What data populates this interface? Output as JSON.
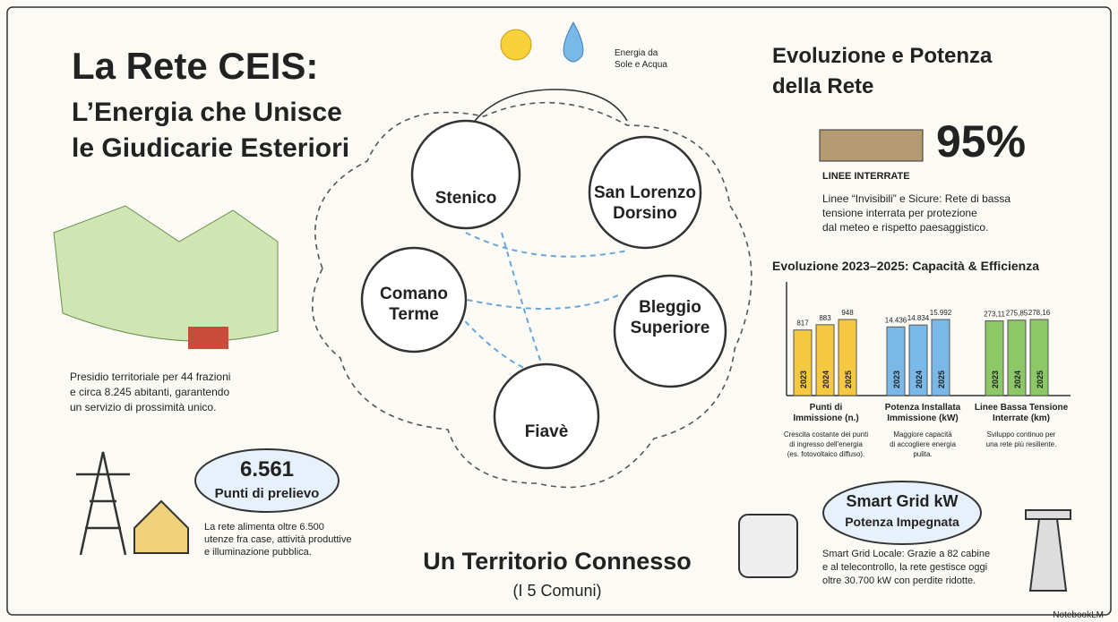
{
  "header": {
    "title": "La Rete CEIS:",
    "subtitle_lines": [
      "L’Energia che Unisce",
      "le Giudicarie Esteriori"
    ]
  },
  "energy_label": [
    "Energia da",
    "Sole e Acqua"
  ],
  "presidio_text": [
    "Presidio territoriale per 44 frazioni",
    "e circa 8.245 abitanti, garantendo",
    "un servizio di prossimità unico."
  ],
  "prelievo": {
    "value": "6.561",
    "label": "Punti di prelievo",
    "text": [
      "La rete alimenta oltre 6.500",
      "utenze fra case, attività produttive",
      "e illuminazione pubblica."
    ]
  },
  "nodes": [
    {
      "label": [
        "Stenico"
      ]
    },
    {
      "label": [
        "San Lorenzo",
        "Dorsino"
      ]
    },
    {
      "label": [
        "Comano",
        "Terme"
      ]
    },
    {
      "label": [
        "Bleggio",
        "Superiore"
      ]
    },
    {
      "label": [
        "Fiavè"
      ]
    }
  ],
  "center": {
    "title": "Un Territorio Connesso",
    "subtitle": "(I 5 Comuni)"
  },
  "evolution": {
    "title": [
      "Evoluzione e Potenza",
      "della Rete"
    ],
    "percent": "95%",
    "percent_label": "LINEE INTERRATE",
    "text": [
      "Linee “Invisibili” e Sicure: Rete di bassa",
      "tensione interrata per protezione",
      "dal meteo e rispetto paesaggistico."
    ]
  },
  "charts_title": "Evoluzione 2023–2025: Capacità & Efficienza",
  "chart_data": [
    {
      "type": "bar",
      "title": [
        "Punti di",
        "Immissione (n.)"
      ],
      "note": [
        "Crescita costante dei punti",
        "di ingresso dell'energia",
        "(es. fotovoltaico diffuso)."
      ],
      "categories": [
        "2023",
        "2024",
        "2025"
      ],
      "values": [
        817,
        883,
        948
      ],
      "color": "#f5c842"
    },
    {
      "type": "bar",
      "title": [
        "Potenza Installata",
        "Immissione (kW)"
      ],
      "note": [
        "Maggiore capacità",
        "di accogliere energia",
        "pulita."
      ],
      "categories": [
        "2023",
        "2024",
        "2025"
      ],
      "values": [
        14436,
        14834,
        15992
      ],
      "value_labels": [
        "14.436",
        "14.834",
        "15.992"
      ],
      "color": "#7ab8e8"
    },
    {
      "type": "bar",
      "title": [
        "Linee Bassa Tensione",
        "Interrate (km)"
      ],
      "note": [
        "Sviluppo continuo per",
        "una rete più resiliente."
      ],
      "categories": [
        "2023",
        "2024",
        "2025"
      ],
      "values": [
        273.11,
        275.85,
        278.16
      ],
      "value_labels": [
        "273,11",
        "275,85",
        "278,16"
      ],
      "color": "#8cc866"
    }
  ],
  "smart_grid": {
    "title": "Smart Grid kW",
    "subtitle": "Potenza Impegnata",
    "text": [
      "Smart Grid Locale: Grazie a 82 cabine",
      "e al telecontrollo, la rete gestisce oggi",
      "oltre 30.700 kW con perdite ridotte."
    ]
  },
  "credit": "NotebookLM"
}
